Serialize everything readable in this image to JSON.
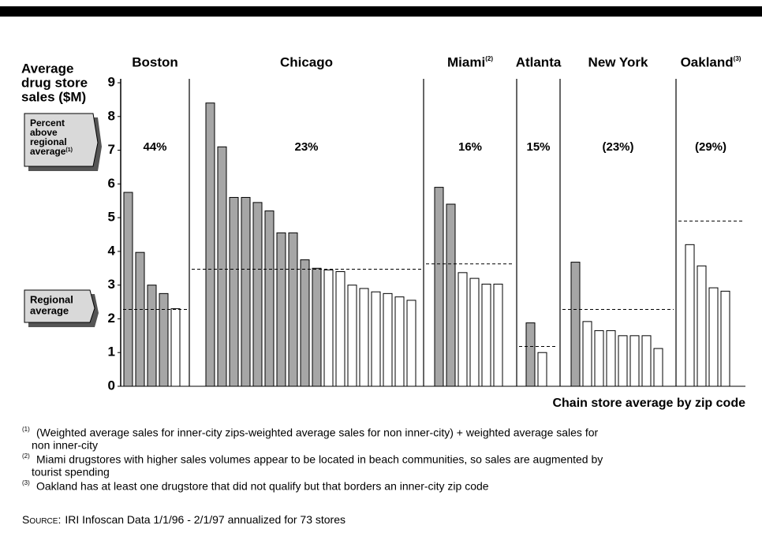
{
  "chart_data": {
    "type": "bar",
    "ylabel": [
      "Average",
      "drug store",
      "sales ($M)"
    ],
    "xlabel": "Chain store average by zip code",
    "ylim": [
      0,
      9
    ],
    "yticks": [
      0,
      1,
      2,
      3,
      4,
      5,
      6,
      7,
      8,
      9
    ],
    "colors": {
      "inner": "#a6a6a6",
      "other": "#ffffff"
    },
    "callouts": [
      [
        "Percent",
        "above",
        "regional",
        "average"
      ],
      [
        "Regional",
        "average"
      ]
    ],
    "callout_note": "(1)",
    "groups": [
      {
        "name": "Boston",
        "percent": "44%",
        "average": 2.28,
        "inner": [
          5.75,
          3.97,
          3.0,
          2.75
        ],
        "other": [
          2.3
        ]
      },
      {
        "name": "Chicago",
        "percent": "23%",
        "average": 3.47,
        "inner": [
          8.4,
          7.1,
          5.6,
          5.6,
          5.45,
          5.2,
          4.55,
          4.55,
          3.75,
          3.5
        ],
        "other": [
          3.45,
          3.4,
          3.0,
          2.9,
          2.8,
          2.75,
          2.65,
          2.55
        ]
      },
      {
        "name": "Miami",
        "note": "(2)",
        "percent": "16%",
        "average": 3.63,
        "inner": [
          5.9,
          5.4
        ],
        "other": [
          3.37,
          3.2,
          3.03,
          3.03
        ]
      },
      {
        "name": "Atlanta",
        "percent": "15%",
        "average": 1.18,
        "inner": [
          1.88
        ],
        "other": [
          1.0
        ]
      },
      {
        "name": "New York",
        "percent": "(23%)",
        "average": 2.28,
        "inner": [
          3.68
        ],
        "other": [
          1.92,
          1.65,
          1.65,
          1.5,
          1.5,
          1.5,
          1.12
        ]
      },
      {
        "name": "Oakland",
        "note": "(3)",
        "percent": "(29%)",
        "average": 4.9,
        "inner": [],
        "other": [
          4.2,
          3.57,
          2.92,
          2.82
        ]
      }
    ],
    "footnotes": [
      {
        "mark": "(1)",
        "lines": [
          "(Weighted average sales for inner-city zips-weighted average sales for non inner-city) + weighted average sales for",
          "non inner-city"
        ]
      },
      {
        "mark": "(2)",
        "lines": [
          "Miami drugstores with higher sales volumes appear to be located in beach communities, so sales are augmented by",
          "tourist spending"
        ]
      },
      {
        "mark": "(3)",
        "lines": [
          "Oakland has at least one drugstore that did not qualify but that borders an inner-city zip code"
        ]
      }
    ],
    "source_label": "Source:",
    "source": "IRI Infoscan Data 1/1/96 - 2/1/97 annualized for 73 stores"
  }
}
